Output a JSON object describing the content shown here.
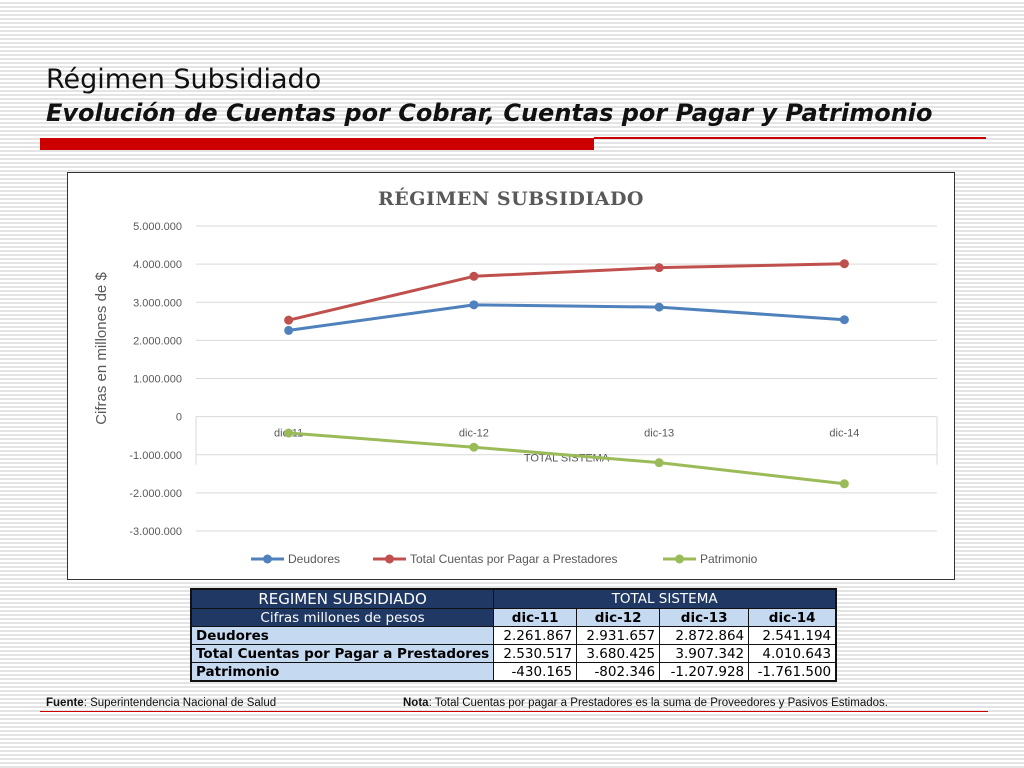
{
  "slide": {
    "title": "Régimen Subsidiado",
    "subtitle": "Evolución de Cuentas por Cobrar, Cuentas por Pagar y Patrimonio"
  },
  "chart_data": {
    "type": "line",
    "title": "RÉGIMEN SUBSIDIADO",
    "xlabel": "TOTAL SISTEMA",
    "ylabel": "Cifras en millones de $",
    "categories": [
      "dic-11",
      "dic-12",
      "dic-13",
      "dic-14"
    ],
    "ylim": [
      -3000000,
      5000000
    ],
    "yticks": [
      5000000,
      4000000,
      3000000,
      2000000,
      1000000,
      0,
      -1000000,
      -2000000,
      -3000000
    ],
    "ytick_labels": [
      "5.000.000",
      "4.000.000",
      "3.000.000",
      "2.000.000",
      "1.000.000",
      "0",
      "-1.000.000",
      "-2.000.000",
      "-3.000.000"
    ],
    "grid": true,
    "legend_position": "bottom",
    "series": [
      {
        "name": "Deudores",
        "color": "#4f81bd",
        "values": [
          2261867,
          2931657,
          2872864,
          2541194
        ]
      },
      {
        "name": "Total Cuentas por Pagar a Prestadores",
        "color": "#c0504d",
        "values": [
          2530517,
          3680425,
          3907342,
          4010643
        ]
      },
      {
        "name": "Patrimonio",
        "color": "#9bbb59",
        "values": [
          -430165,
          -802346,
          -1207928,
          -1761500
        ]
      }
    ]
  },
  "table": {
    "title": "REGIMEN SUBSIDIADO",
    "group_header": "TOTAL SISTEMA",
    "units": "Cifras millones de pesos",
    "columns": [
      "dic-11",
      "dic-12",
      "dic-13",
      "dic-14"
    ],
    "rows": [
      {
        "label": "Deudores",
        "values": [
          "2.261.867",
          "2.931.657",
          "2.872.864",
          "2.541.194"
        ]
      },
      {
        "label": "Total Cuentas por Pagar a Prestadores",
        "values": [
          "2.530.517",
          "3.680.425",
          "3.907.342",
          "4.010.643"
        ]
      },
      {
        "label": "Patrimonio",
        "values": [
          "-430.165",
          "-802.346",
          "-1.207.928",
          "-1.761.500"
        ]
      }
    ]
  },
  "footer": {
    "source_label": "Fuente",
    "source_text": ": Superintendencia Nacional de Salud",
    "note_label": "Nota",
    "note_text": ": Total Cuentas por pagar a Prestadores es la suma de Proveedores y Pasivos Estimados."
  }
}
